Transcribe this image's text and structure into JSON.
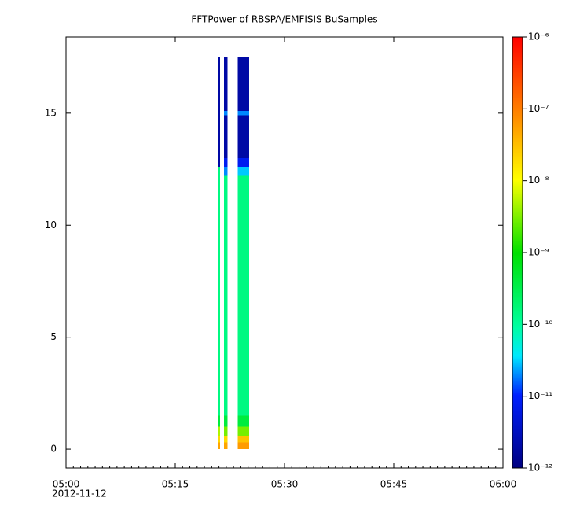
{
  "chart_data": {
    "type": "spectrogram",
    "title": "FFTPower of RBSPA/EMFISIS  BuSamples",
    "x_date_label": "2012-11-12",
    "xlim": [
      "05:00",
      "06:00"
    ],
    "xticks": [
      "05:00",
      "05:15",
      "05:30",
      "05:45",
      "06:00"
    ],
    "x_minor_tick_minutes": 1,
    "ylim": [
      -0.84,
      18.4
    ],
    "yticks": [
      0,
      5,
      10,
      15
    ],
    "time_bins": [
      "05:20:50",
      "05:21:10",
      "05:21:40",
      "05:22:10",
      "05:23:35",
      "05:25:10"
    ],
    "y_bins": [
      0,
      0.3,
      0.6,
      1.0,
      1.5,
      12.2,
      12.6,
      13.0,
      14.9,
      15.1,
      17.5
    ],
    "values": [
      [
        5e-08,
        2e-08,
        5e-09,
        4e-10,
        1.5e-10,
        1.5e-10,
        2e-12,
        2e-12,
        2e-12,
        2e-12
      ],
      [
        null,
        null,
        null,
        null,
        null,
        null,
        null,
        null,
        null,
        null
      ],
      [
        5e-08,
        2e-08,
        3e-09,
        4e-10,
        1.5e-10,
        2e-11,
        8e-12,
        2e-12,
        2e-11,
        2e-12
      ],
      [
        null,
        null,
        null,
        null,
        null,
        null,
        null,
        null,
        null,
        null
      ],
      [
        6e-08,
        3e-08,
        3e-09,
        4e-10,
        1.5e-10,
        3e-11,
        8e-12,
        2e-12,
        2e-11,
        2e-12
      ]
    ],
    "zlim": [
      1e-12,
      1e-06
    ],
    "zlog": true,
    "zticks": [
      {
        "value": 1e-12,
        "label": "10⁻¹²"
      },
      {
        "value": 1e-11,
        "label": "10⁻¹¹"
      },
      {
        "value": 1e-10,
        "label": "10⁻¹⁰"
      },
      {
        "value": 1e-09,
        "label": "10⁻⁹"
      },
      {
        "value": 1e-08,
        "label": "10⁻⁸"
      },
      {
        "value": 1e-07,
        "label": "10⁻⁷"
      },
      {
        "value": 1e-06,
        "label": "10⁻⁶"
      }
    ],
    "colorscale": [
      [
        0,
        "#000080"
      ],
      [
        0.17,
        "#0020ff"
      ],
      [
        0.26,
        "#00e8ff"
      ],
      [
        0.33,
        "#00ffa0"
      ],
      [
        0.5,
        "#00e000"
      ],
      [
        0.67,
        "#ffff00"
      ],
      [
        0.83,
        "#ff8000"
      ],
      [
        1,
        "#ff0000"
      ]
    ]
  }
}
